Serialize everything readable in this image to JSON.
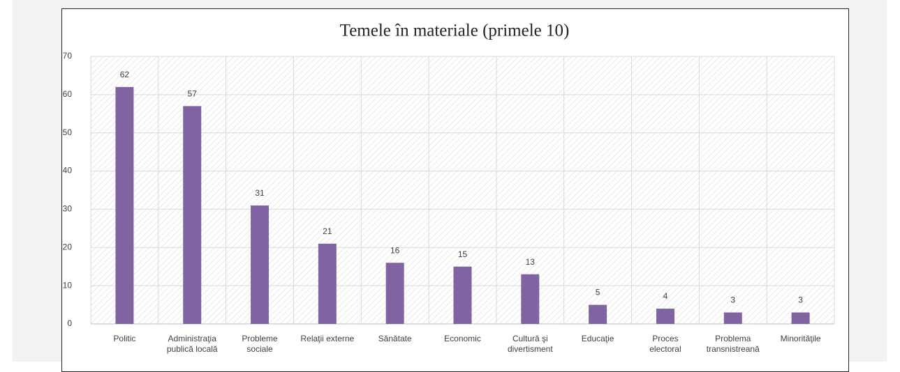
{
  "chart_data": {
    "type": "bar",
    "title": "Temele în materiale (primele 10)",
    "categories": [
      "Politic",
      "Administraţia\npublică locală",
      "Probleme\nsociale",
      "Relaţii externe",
      "Sănătate",
      "Economic",
      "Cultură şi\ndivertisment",
      "Educaţie",
      "Proces\nelectoral",
      "Problema\ntransnistreană",
      "Minorităţile"
    ],
    "values": [
      62,
      57,
      31,
      21,
      16,
      15,
      13,
      5,
      4,
      3,
      3
    ],
    "color": "#8064a2",
    "ylim": [
      0,
      70
    ],
    "yticks": [
      0,
      10,
      20,
      30,
      40,
      50,
      60,
      70
    ],
    "grid": true
  }
}
